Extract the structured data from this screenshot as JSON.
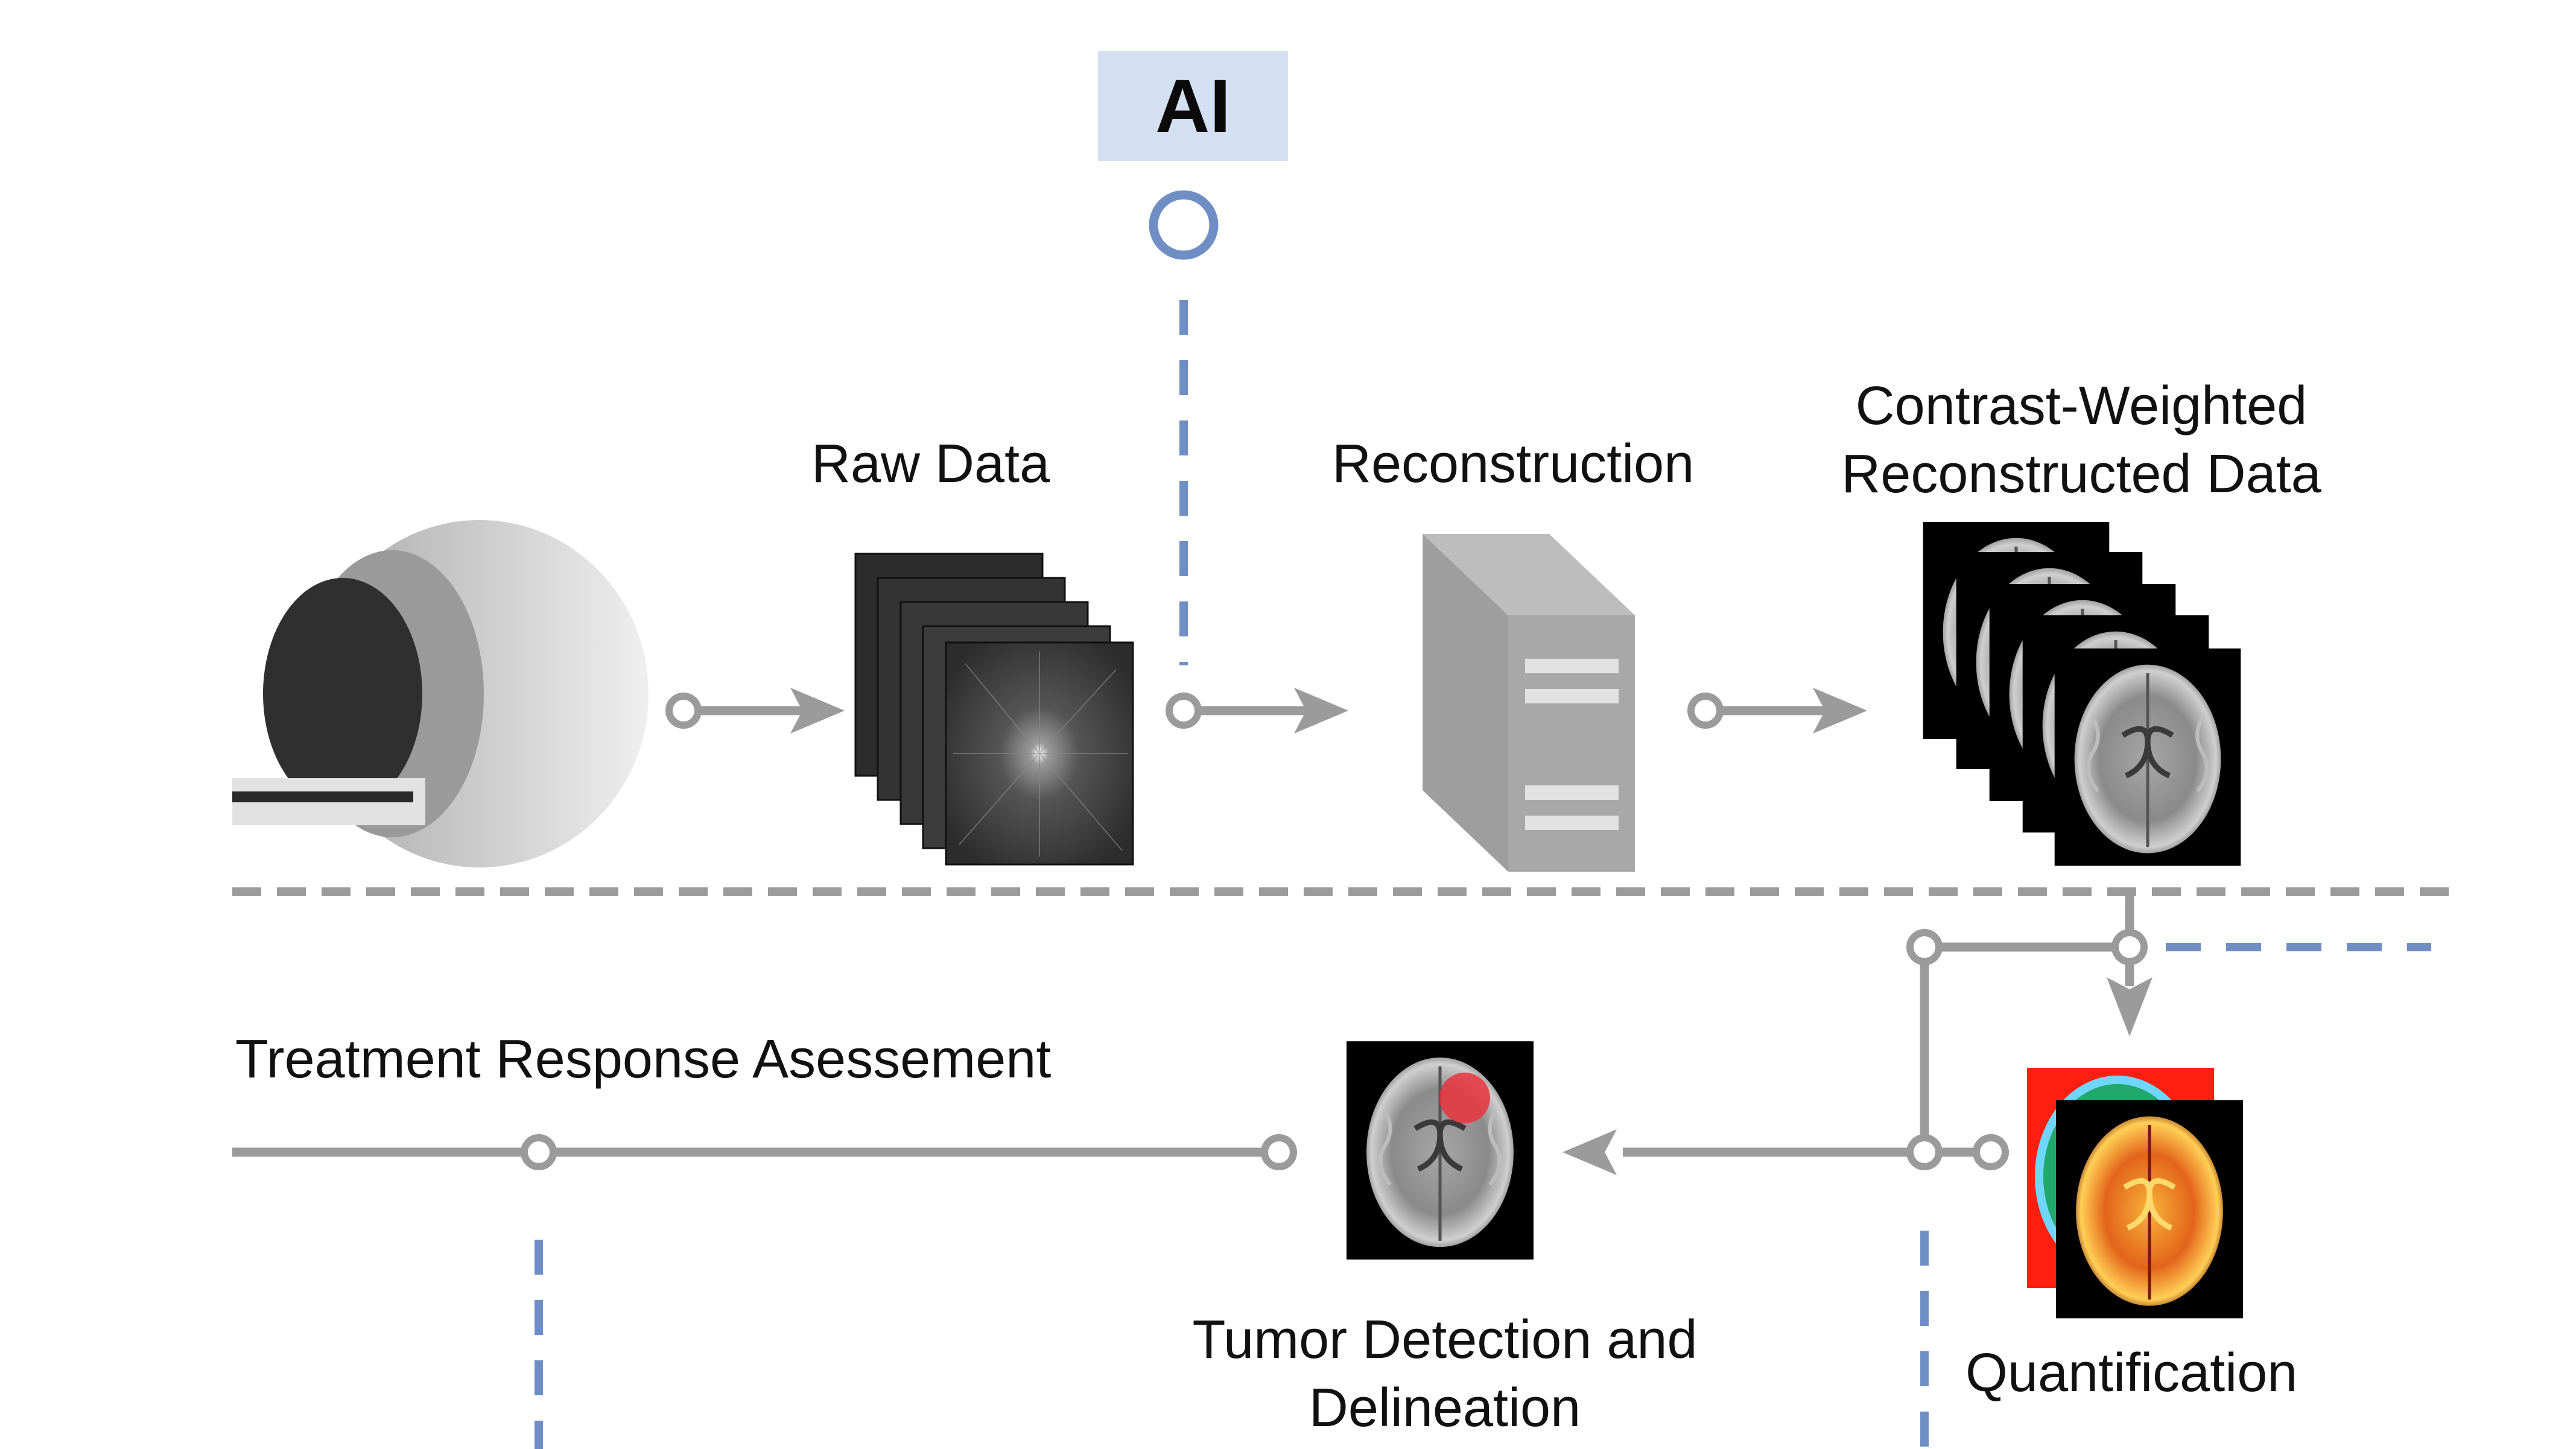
{
  "ai_label": "AI",
  "stages": {
    "raw_data": "Raw Data",
    "reconstruction": "Reconstruction",
    "contrast_weighted_line1": "Contrast-Weighted",
    "contrast_weighted_line2": "Reconstructed Data",
    "treatment": "Treatment Response Asessement",
    "tumor_line1": "Tumor Detection and",
    "tumor_line2": "Delineation",
    "quantification": "Quantification"
  },
  "colors": {
    "line_gray": "#9b9b9b",
    "ai_blue": "#6f8fc4",
    "ai_box_fill": "#d3e0f1",
    "tumor_red": "#e8343c"
  }
}
